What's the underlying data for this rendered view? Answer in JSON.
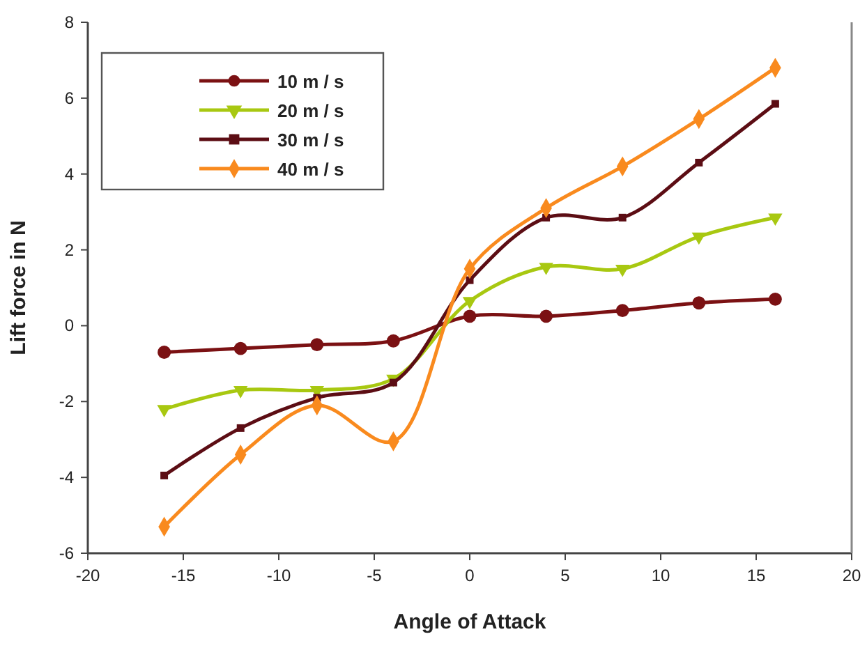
{
  "chart_data": {
    "type": "line",
    "xlabel": "Angle of Attack",
    "ylabel": "Lift force in N",
    "x": [
      -16,
      -12,
      -8,
      -4,
      0,
      4,
      8,
      12,
      16
    ],
    "series": [
      {
        "name": "10 m / s",
        "color": "#7b1113",
        "marker": "circle",
        "values": [
          -0.7,
          -0.6,
          -0.5,
          -0.4,
          0.25,
          0.25,
          0.4,
          0.6,
          0.7
        ]
      },
      {
        "name": "20 m / s",
        "color": "#a8c811",
        "marker": "triangle",
        "values": [
          -2.2,
          -1.7,
          -1.7,
          -1.4,
          0.65,
          1.55,
          1.5,
          2.35,
          2.85
        ]
      },
      {
        "name": "30 m / s",
        "color": "#5c0d14",
        "marker": "square",
        "values": [
          -3.95,
          -2.7,
          -1.9,
          -1.5,
          1.2,
          2.85,
          2.85,
          4.3,
          5.85
        ]
      },
      {
        "name": "40 m / s",
        "color": "#f98a1e",
        "marker": "diamond",
        "values": [
          -5.3,
          -3.4,
          -2.1,
          -3.05,
          1.5,
          3.1,
          4.2,
          5.45,
          6.8
        ]
      }
    ],
    "xlim": [
      -20,
      20
    ],
    "xticks": [
      -20,
      -15,
      -10,
      -5,
      0,
      5,
      10,
      15,
      20
    ],
    "ylim": [
      -6,
      8
    ],
    "yticks": [
      -6,
      -4,
      -2,
      0,
      2,
      4,
      6,
      8
    ],
    "grid": false,
    "legend": "top left",
    "line_style": "solid"
  }
}
